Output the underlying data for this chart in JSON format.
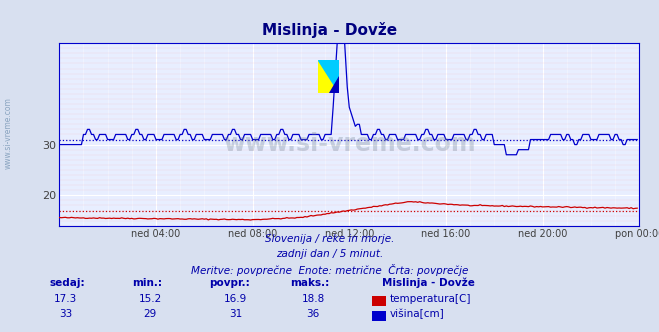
{
  "title": "Mislinja - Dovže",
  "title_color": "#000080",
  "bg_color": "#d8e0f0",
  "plot_bg_color": "#e8eeff",
  "temp_color": "#cc0000",
  "visina_color": "#0000cc",
  "temp_avg": 16.9,
  "visina_avg": 31,
  "temp_min": 15.2,
  "temp_max": 18.8,
  "temp_sedaj": 17.3,
  "visina_min": 29,
  "visina_max": 36,
  "visina_sedaj": 33,
  "footnote1": "Slovenija / reke in morje.",
  "footnote2": "zadnji dan / 5 minut.",
  "footnote3": "Meritve: povprečne  Enote: metrične  Črta: povprečje",
  "watermark": "www.si-vreme.com",
  "label_sedaj": "sedaj:",
  "label_min": "min.:",
  "label_povpr": "povpr.:",
  "label_maks": "maks.:",
  "legend_title": "Mislinja - Dovže",
  "legend_temp": "temperatura[C]",
  "legend_visina": "višina[cm]",
  "sidebar_text": "www.si-vreme.com",
  "sidebar_color": "#7090b0",
  "xlabel_ticks": [
    "ned 04:00",
    "ned 08:00",
    "ned 12:00",
    "ned 16:00",
    "ned 20:00",
    "pon 00:00"
  ],
  "tick_hours": [
    4,
    8,
    12,
    16,
    20,
    24
  ],
  "n_points": 288,
  "y_min": 14.0,
  "y_max": 50.0,
  "yticks": [
    20,
    30
  ]
}
